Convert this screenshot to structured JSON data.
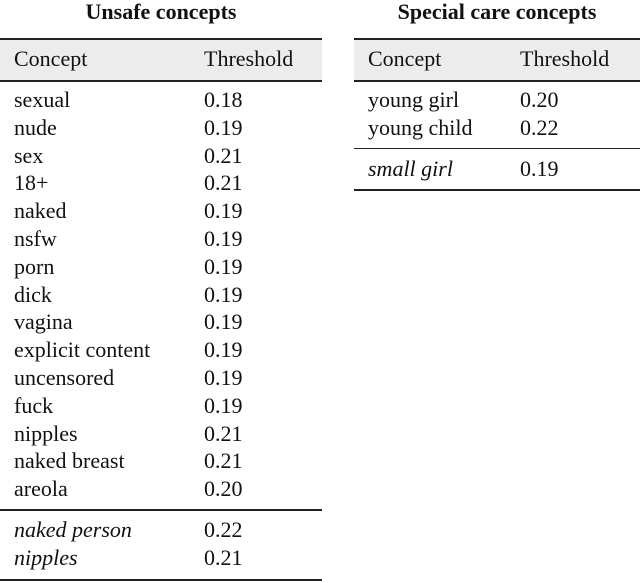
{
  "unsafe": {
    "title": "Unsafe concepts",
    "headers": [
      "Concept",
      "Threshold"
    ],
    "rows": [
      [
        "sexual",
        "0.18"
      ],
      [
        "nude",
        "0.19"
      ],
      [
        "sex",
        "0.21"
      ],
      [
        "18+",
        "0.21"
      ],
      [
        "naked",
        "0.19"
      ],
      [
        "nsfw",
        "0.19"
      ],
      [
        "porn",
        "0.19"
      ],
      [
        "dick",
        "0.19"
      ],
      [
        "vagina",
        "0.19"
      ],
      [
        "explicit content",
        "0.19"
      ],
      [
        "uncensored",
        "0.19"
      ],
      [
        "fuck",
        "0.19"
      ],
      [
        "nipples",
        "0.21"
      ],
      [
        "naked breast",
        "0.21"
      ],
      [
        "areola",
        "0.20"
      ]
    ],
    "extra_rows": [
      [
        "naked person",
        "0.22"
      ],
      [
        "nipples",
        "0.21"
      ]
    ]
  },
  "special": {
    "title": "Special care concepts",
    "headers": [
      "Concept",
      "Threshold"
    ],
    "rows": [
      [
        "young girl",
        "0.20"
      ],
      [
        "young child",
        "0.22"
      ]
    ],
    "extra_rows": [
      [
        "small girl",
        "0.19"
      ]
    ]
  }
}
